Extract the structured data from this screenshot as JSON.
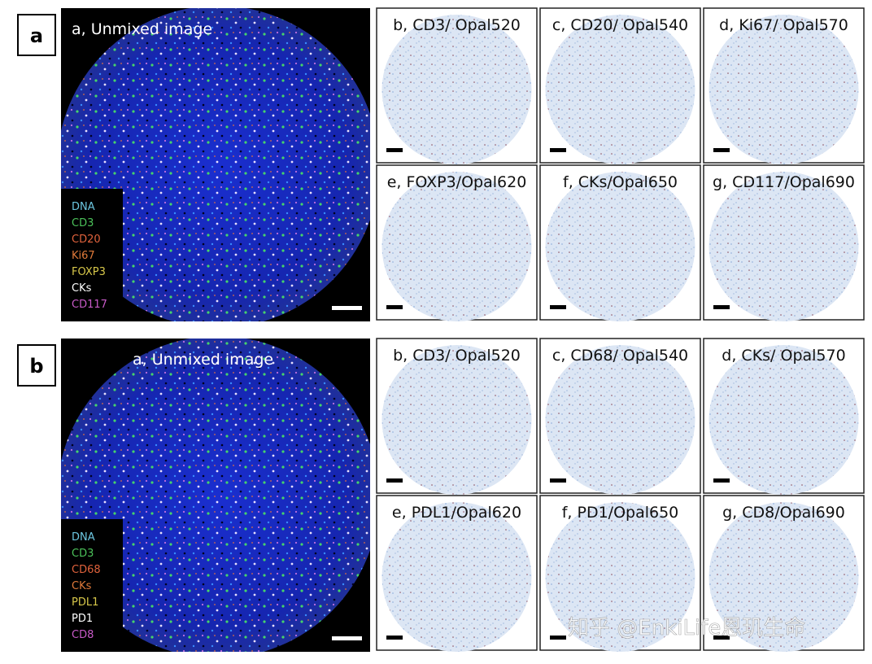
{
  "figures": [
    {
      "label": "a",
      "main_title": "a, Unmixed image",
      "legend": [
        {
          "name": "DNA",
          "color": "#6cc6e0"
        },
        {
          "name": "CD3",
          "color": "#4cc25a"
        },
        {
          "name": "CD20",
          "color": "#e0623c"
        },
        {
          "name": "Ki67",
          "color": "#e07a3a"
        },
        {
          "name": "FOXP3",
          "color": "#d8c84a"
        },
        {
          "name": "CKs",
          "color": "#ffffff"
        },
        {
          "name": "CD117",
          "color": "#c85ac8"
        }
      ],
      "panels": [
        "b, CD3/ Opal520",
        "c, CD20/ Opal540",
        "d, Ki67/ Opal570",
        "e, FOXP3/Opal620",
        "f, CKs/Opal650",
        "g, CD117/Opal690"
      ]
    },
    {
      "label": "b",
      "main_title": "a, Unmixed image",
      "legend": [
        {
          "name": "DNA",
          "color": "#6cc6e0"
        },
        {
          "name": "CD3",
          "color": "#4cc25a"
        },
        {
          "name": "CD68",
          "color": "#e0623c"
        },
        {
          "name": "CKs",
          "color": "#e07a3a"
        },
        {
          "name": "PDL1",
          "color": "#d8c84a"
        },
        {
          "name": "PD1",
          "color": "#ffffff"
        },
        {
          "name": "CD8",
          "color": "#c85ac8"
        }
      ],
      "panels": [
        "b, CD3/ Opal520",
        "c, CD68/ Opal540",
        "d, CKs/ Opal570",
        "e, PDL1/Opal620",
        "f, PD1/Opal650",
        "g, CD8/Opal690"
      ]
    }
  ],
  "watermark": "知乎 @EnkiLife恩玑生命"
}
